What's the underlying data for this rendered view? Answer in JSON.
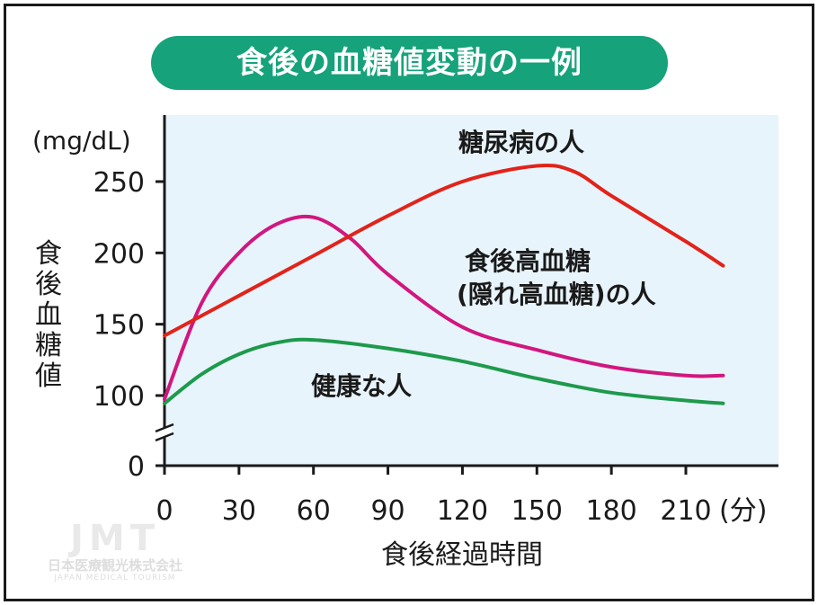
{
  "chart_data": {
    "type": "line",
    "title": "食後の血糖値変動の一例",
    "xlabel": "食後経過時間",
    "x_unit": "(分)",
    "ylabel": "食後血糖値",
    "y_unit": "(mg/dL)",
    "xlim": [
      0,
      240
    ],
    "ylim": [
      0,
      270
    ],
    "y_axis_break": true,
    "x_ticks": [
      0,
      30,
      60,
      90,
      120,
      150,
      180,
      210
    ],
    "y_ticks": [
      0,
      100,
      150,
      200,
      250
    ],
    "grid": false,
    "plot_background": "#e8f4fb",
    "series": [
      {
        "name": "糖尿病の人",
        "name_lines": [
          "糖尿病の人"
        ],
        "color": "#e2231a",
        "x": [
          0,
          30,
          60,
          90,
          120,
          150,
          165,
          180,
          210,
          225
        ],
        "y": [
          142,
          170,
          198,
          226,
          250,
          261,
          257,
          240,
          208,
          191
        ]
      },
      {
        "name": "食後高血糖(隠れ高血糖)の人",
        "name_lines": [
          "食後高血糖",
          "(隠れ高血糖)の人"
        ],
        "color": "#d1177f",
        "x": [
          0,
          15,
          30,
          45,
          60,
          75,
          90,
          120,
          150,
          180,
          210,
          225
        ],
        "y": [
          95,
          165,
          200,
          220,
          225,
          210,
          185,
          148,
          132,
          120,
          114,
          114
        ]
      },
      {
        "name": "健康な人",
        "name_lines": [
          "健康な人"
        ],
        "color": "#1d9a4c",
        "x": [
          0,
          15,
          30,
          45,
          60,
          90,
          120,
          150,
          180,
          210,
          225
        ],
        "y": [
          89,
          115,
          129,
          137,
          139,
          133,
          124,
          112,
          102,
          93,
          89
        ]
      }
    ]
  },
  "watermark": {
    "logo": "JMT",
    "name": "日本医療観光株式会社",
    "sub": "JAPAN MEDICAL TOURISM"
  }
}
